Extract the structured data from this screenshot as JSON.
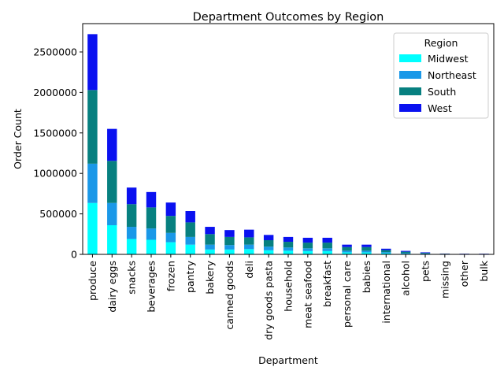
{
  "chart_data": {
    "type": "bar",
    "stacked": true,
    "title": "Department Outcomes by Region",
    "xlabel": "Department",
    "ylabel": "Order Count",
    "ylim": [
      0,
      2850000
    ],
    "yticks": [
      0,
      500000,
      1000000,
      1500000,
      2000000,
      2500000
    ],
    "ytick_labels": [
      "0",
      "500000",
      "1000000",
      "1500000",
      "2000000",
      "2500000"
    ],
    "grid": false,
    "legend": {
      "title": "Region",
      "placement": "top-right"
    },
    "categories": [
      "produce",
      "dairy eggs",
      "snacks",
      "beverages",
      "frozen",
      "pantry",
      "bakery",
      "canned goods",
      "deli",
      "dry goods pasta",
      "household",
      "meat seafood",
      "breakfast",
      "personal care",
      "babies",
      "international",
      "alcohol",
      "pets",
      "missing",
      "other",
      "bulk"
    ],
    "series": [
      {
        "name": "Midwest",
        "color": "#00ffff",
        "values": [
          635000,
          360000,
          190000,
          180000,
          150000,
          120000,
          60000,
          60000,
          65000,
          50000,
          45000,
          40000,
          40000,
          25000,
          25000,
          15000,
          8000,
          5000,
          2000,
          1000,
          1000
        ]
      },
      {
        "name": "Northeast",
        "color": "#1a98e8",
        "values": [
          485000,
          275000,
          150000,
          140000,
          115000,
          95000,
          60000,
          55000,
          55000,
          45000,
          40000,
          35000,
          35000,
          20000,
          20000,
          13000,
          7000,
          5000,
          2000,
          1500,
          1500
        ]
      },
      {
        "name": "South",
        "color": "#078080",
        "values": [
          910000,
          520000,
          280000,
          260000,
          210000,
          180000,
          130000,
          100000,
          90000,
          80000,
          70000,
          70000,
          70000,
          45000,
          45000,
          25000,
          18000,
          8000,
          4000,
          3000,
          3000
        ]
      },
      {
        "name": "West",
        "color": "#0a11f0",
        "values": [
          690000,
          395000,
          205000,
          190000,
          165000,
          140000,
          90000,
          85000,
          95000,
          65000,
          60000,
          60000,
          60000,
          30000,
          30000,
          17000,
          10000,
          7000,
          2000,
          2500,
          2500
        ]
      }
    ]
  }
}
